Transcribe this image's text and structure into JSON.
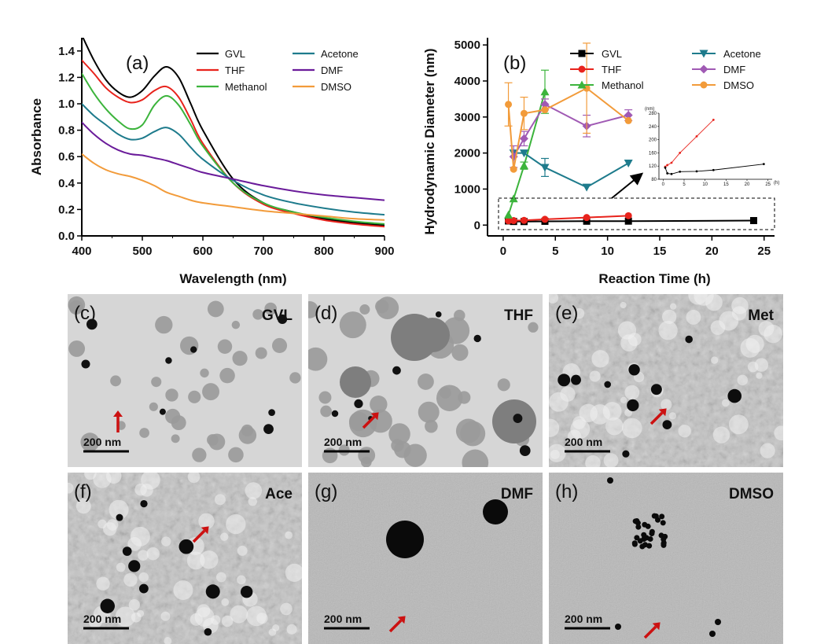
{
  "chart_data": [
    {
      "panel": "(a)",
      "type": "line",
      "xlabel": "Wavelength (nm)",
      "ylabel": "Absorbance",
      "xlim": [
        400,
        900
      ],
      "ylim": [
        0,
        1.5
      ],
      "xticks": [
        "400",
        "500",
        "600",
        "700",
        "800",
        "900"
      ],
      "yticks": [
        "0.0",
        "0.2",
        "0.4",
        "0.6",
        "0.8",
        "1.0",
        "1.2",
        "1.4"
      ],
      "legend_position": "top-right",
      "series": [
        {
          "name": "GVL",
          "color": "#000000",
          "x": [
            400,
            420,
            440,
            460,
            480,
            500,
            520,
            540,
            560,
            580,
            600,
            650,
            700,
            750,
            800,
            850,
            900
          ],
          "y": [
            1.52,
            1.33,
            1.18,
            1.09,
            1.05,
            1.1,
            1.21,
            1.28,
            1.2,
            1.0,
            0.8,
            0.43,
            0.25,
            0.18,
            0.13,
            0.1,
            0.08
          ]
        },
        {
          "name": "THF",
          "color": "#e8231c",
          "x": [
            400,
            420,
            440,
            460,
            480,
            500,
            520,
            540,
            560,
            580,
            600,
            650,
            700,
            750,
            800,
            850,
            900
          ],
          "y": [
            1.33,
            1.23,
            1.12,
            1.05,
            1.01,
            1.03,
            1.1,
            1.13,
            1.05,
            0.88,
            0.7,
            0.4,
            0.24,
            0.17,
            0.12,
            0.09,
            0.07
          ]
        },
        {
          "name": "Methanol",
          "color": "#3cb43c",
          "x": [
            400,
            420,
            440,
            460,
            480,
            500,
            520,
            540,
            560,
            580,
            600,
            650,
            700,
            750,
            800,
            850,
            900
          ],
          "y": [
            1.23,
            1.08,
            0.96,
            0.87,
            0.81,
            0.84,
            0.99,
            1.06,
            0.99,
            0.84,
            0.68,
            0.4,
            0.25,
            0.18,
            0.14,
            0.11,
            0.09
          ]
        },
        {
          "name": "Acetone",
          "color": "#1e7b8c",
          "x": [
            400,
            420,
            440,
            460,
            480,
            500,
            520,
            540,
            560,
            580,
            600,
            650,
            700,
            750,
            800,
            850,
            900
          ],
          "y": [
            1.0,
            0.91,
            0.84,
            0.77,
            0.73,
            0.74,
            0.79,
            0.82,
            0.77,
            0.67,
            0.58,
            0.42,
            0.31,
            0.25,
            0.21,
            0.18,
            0.16
          ]
        },
        {
          "name": "DMF",
          "color": "#6a1b9a",
          "x": [
            400,
            420,
            440,
            460,
            480,
            500,
            520,
            540,
            560,
            580,
            600,
            650,
            700,
            750,
            800,
            850,
            900
          ],
          "y": [
            0.86,
            0.77,
            0.7,
            0.65,
            0.62,
            0.61,
            0.59,
            0.57,
            0.54,
            0.51,
            0.48,
            0.43,
            0.38,
            0.34,
            0.31,
            0.29,
            0.27
          ]
        },
        {
          "name": "DMSO",
          "color": "#f29b3a",
          "x": [
            400,
            420,
            440,
            460,
            480,
            500,
            520,
            540,
            560,
            580,
            600,
            650,
            700,
            750,
            800,
            850,
            900
          ],
          "y": [
            0.62,
            0.55,
            0.5,
            0.47,
            0.45,
            0.42,
            0.38,
            0.33,
            0.3,
            0.27,
            0.25,
            0.22,
            0.19,
            0.17,
            0.15,
            0.13,
            0.12
          ]
        }
      ]
    },
    {
      "panel": "(b)",
      "type": "line",
      "xlabel": "Reaction Time (h)",
      "ylabel": "Hydrodynamic Diameter (nm)",
      "xlim": [
        -1.5,
        26
      ],
      "ylim": [
        -300,
        5200
      ],
      "xticks": [
        "0",
        "5",
        "10",
        "15",
        "20",
        "25"
      ],
      "yticks": [
        "0",
        "1000",
        "2000",
        "3000",
        "4000",
        "5000"
      ],
      "legend_position": "top-right",
      "series": [
        {
          "name": "GVL",
          "color": "#000000",
          "marker": "square",
          "x": [
            0.5,
            1,
            2,
            4,
            8,
            12,
            24
          ],
          "y": [
            115,
            100,
            98,
            105,
            108,
            110,
            125
          ],
          "err": [
            0,
            0,
            0,
            0,
            0,
            0,
            0
          ]
        },
        {
          "name": "THF",
          "color": "#e8231c",
          "marker": "circle",
          "x": [
            0.5,
            1,
            2,
            4,
            8,
            12
          ],
          "y": [
            120,
            125,
            130,
            160,
            210,
            260
          ],
          "err": [
            0,
            0,
            0,
            0,
            0,
            0
          ]
        },
        {
          "name": "Methanol",
          "color": "#3cb43c",
          "marker": "triangle",
          "x": [
            0.5,
            1,
            2,
            4
          ],
          "y": [
            280,
            730,
            1650,
            3700
          ],
          "err": [
            0,
            0,
            100,
            600
          ]
        },
        {
          "name": "Acetone",
          "color": "#1e7b8c",
          "marker": "triangle-down",
          "x": [
            1,
            2,
            4,
            8,
            12
          ],
          "y": [
            2000,
            2000,
            1600,
            1050,
            1720
          ],
          "err": [
            0,
            0,
            250,
            0,
            0
          ]
        },
        {
          "name": "DMF",
          "color": "#a05ab4",
          "marker": "diamond",
          "x": [
            1,
            2,
            4,
            8,
            12
          ],
          "y": [
            1900,
            2400,
            3350,
            2750,
            3050
          ],
          "err": [
            300,
            200,
            150,
            300,
            150
          ]
        },
        {
          "name": "DMSO",
          "color": "#f29b3a",
          "marker": "circle",
          "x": [
            0.5,
            1,
            2,
            4,
            8,
            12
          ],
          "y": [
            3350,
            1550,
            3100,
            3200,
            3800,
            2900
          ],
          "err": [
            600,
            0,
            450,
            0,
            1250,
            0
          ]
        }
      ],
      "inset": {
        "ylabel_unit": "(nm)",
        "xlabel_unit": "(h)",
        "xlim": [
          -1,
          26
        ],
        "ylim": [
          80,
          280
        ],
        "xticks": [
          "0",
          "5",
          "10",
          "15",
          "20",
          "25"
        ],
        "yticks": [
          "80",
          "120",
          "160",
          "200",
          "240",
          "280"
        ],
        "series": [
          {
            "name": "THF",
            "color": "#e8231c",
            "x": [
              0.5,
              1,
              2,
              4,
              8,
              12
            ],
            "y": [
              118,
              123,
              130,
              160,
              210,
              260
            ]
          },
          {
            "name": "GVL",
            "color": "#000000",
            "x": [
              0.5,
              1,
              2,
              4,
              8,
              12,
              24
            ],
            "y": [
              115,
              98,
              96,
              103,
              104,
              108,
              126
            ]
          }
        ]
      }
    }
  ],
  "tem_panels": [
    {
      "letter": "(c)",
      "solvent": "GVL",
      "scale": "200 nm",
      "tone": "light"
    },
    {
      "letter": "(d)",
      "solvent": "THF",
      "scale": "200 nm",
      "tone": "light"
    },
    {
      "letter": "(e)",
      "solvent": "Met",
      "scale": "200 nm",
      "tone": "mesh"
    },
    {
      "letter": "(f)",
      "solvent": "Ace",
      "scale": "200 nm",
      "tone": "mesh"
    },
    {
      "letter": "(g)",
      "solvent": "DMF",
      "scale": "200 nm",
      "tone": "grain"
    },
    {
      "letter": "(h)",
      "solvent": "DMSO",
      "scale": "200 nm",
      "tone": "grain"
    }
  ],
  "colors": {
    "arrow": "#cc1111",
    "tem_background": "#cfcfcf"
  }
}
